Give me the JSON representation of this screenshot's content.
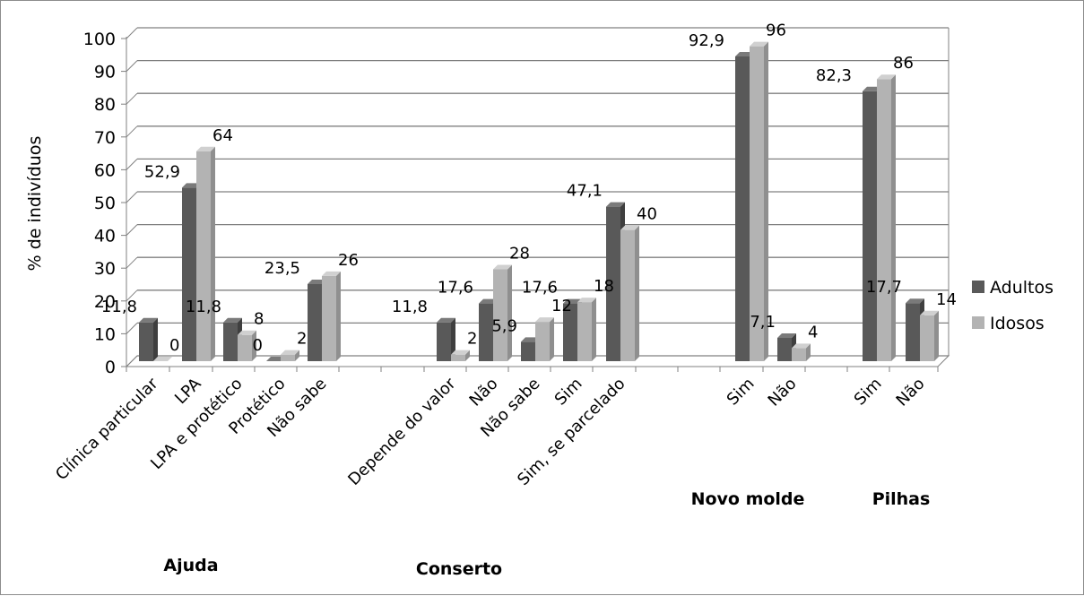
{
  "chart_data": {
    "type": "bar",
    "ylabel": "% de indivíduos",
    "ylim": [
      0,
      100
    ],
    "ytick_step": 10,
    "grid": true,
    "legend_position": "right",
    "series": [
      {
        "name": "Adultos",
        "color": "#595959",
        "top_color": "#7a7a7a",
        "values": [
          11.8,
          52.9,
          11.8,
          0,
          23.5,
          11.8,
          17.6,
          5.9,
          17.6,
          47.1,
          92.9,
          7.1,
          82.3,
          17.7
        ],
        "labels": [
          "11,8",
          "52,9",
          "11,8",
          "0",
          "23,5",
          "11,8",
          "17,6",
          "5,9",
          "17,6",
          "47,1",
          "92,9",
          "7,1",
          "82,3",
          "17,7"
        ]
      },
      {
        "name": "Idosos",
        "color": "#b3b3b3",
        "top_color": "#d0d0d0",
        "values": [
          0,
          64,
          8,
          2,
          26,
          2,
          28,
          12,
          18,
          40,
          96,
          4,
          86,
          14
        ],
        "labels": [
          "0",
          "64",
          "8",
          "2",
          "26",
          "2",
          "28",
          "12",
          "18",
          "40",
          "96",
          "4",
          "86",
          "14"
        ]
      }
    ],
    "categories": [
      "Clínica particular",
      "LPA",
      "LPA e protético",
      "Protético",
      "Não sabe",
      "Depende do valor",
      "Não",
      "Não sabe",
      "Sim",
      "Sim, se parcelado",
      "Sim",
      "Não",
      "Sim",
      "Não"
    ],
    "groups": [
      {
        "name": "Ajuda"
      },
      {
        "name": "Conserto"
      },
      {
        "name": "Novo molde"
      },
      {
        "name": "Pilhas"
      }
    ]
  }
}
